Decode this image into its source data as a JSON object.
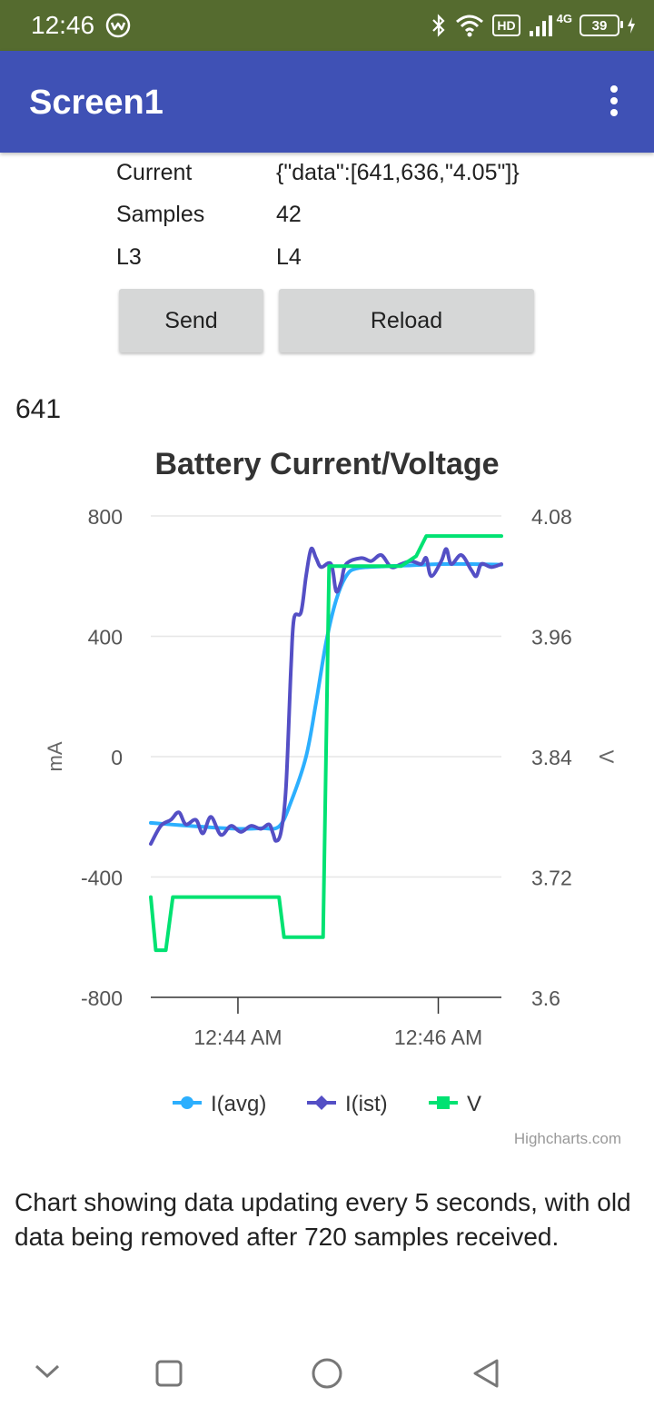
{
  "status_bar": {
    "time": "12:46",
    "network": "4G",
    "hd": "HD",
    "battery": "39"
  },
  "app_bar": {
    "title": "Screen1"
  },
  "info": {
    "rows": [
      {
        "label": "Current",
        "value": "{\"data\":[641,636,\"4.05\"]}"
      },
      {
        "label": "Samples",
        "value": "42"
      },
      {
        "label": "L3",
        "value": "L4"
      }
    ]
  },
  "buttons": {
    "send": "Send",
    "reload": "Reload"
  },
  "current_value": "641",
  "chart_data": {
    "type": "line",
    "title": "Battery Current/Voltage",
    "y_left_label": "mA",
    "y_right_label": "V",
    "y_left_ticks": [
      "800",
      "400",
      "0",
      "-400",
      "-800"
    ],
    "y_right_ticks": [
      "4.08",
      "3.96",
      "3.84",
      "3.72",
      "3.6"
    ],
    "y_left_range": [
      -800,
      800
    ],
    "y_right_range": [
      3.6,
      4.08
    ],
    "x_range_min": [
      0,
      3.5
    ],
    "x_ticks": [
      {
        "t": 0.87,
        "label": "12:44 AM"
      },
      {
        "t": 2.87,
        "label": "12:46 AM"
      }
    ],
    "grid": true,
    "legend_position": "bottom",
    "series": [
      {
        "name": "I(avg)",
        "color": "#2caffe",
        "marker": "circle",
        "axis": "left",
        "points": [
          [
            0,
            -220
          ],
          [
            0.3,
            -228
          ],
          [
            0.6,
            -235
          ],
          [
            0.9,
            -240
          ],
          [
            1.1,
            -238
          ],
          [
            1.28,
            -232
          ],
          [
            1.4,
            -150
          ],
          [
            1.55,
            0
          ],
          [
            1.65,
            180
          ],
          [
            1.75,
            380
          ],
          [
            1.85,
            520
          ],
          [
            1.95,
            600
          ],
          [
            2.05,
            625
          ],
          [
            2.3,
            632
          ],
          [
            2.6,
            636
          ],
          [
            2.9,
            640
          ],
          [
            3.2,
            640
          ],
          [
            3.5,
            638
          ]
        ]
      },
      {
        "name": "I(ist)",
        "color": "#544fc5",
        "marker": "diamond",
        "axis": "left",
        "points": [
          [
            0,
            -290
          ],
          [
            0.1,
            -230
          ],
          [
            0.2,
            -210
          ],
          [
            0.28,
            -185
          ],
          [
            0.35,
            -225
          ],
          [
            0.45,
            -210
          ],
          [
            0.52,
            -255
          ],
          [
            0.6,
            -200
          ],
          [
            0.7,
            -260
          ],
          [
            0.8,
            -230
          ],
          [
            0.9,
            -250
          ],
          [
            1.0,
            -230
          ],
          [
            1.1,
            -240
          ],
          [
            1.18,
            -225
          ],
          [
            1.22,
            -255
          ],
          [
            1.25,
            -280
          ],
          [
            1.3,
            -250
          ],
          [
            1.35,
            -100
          ],
          [
            1.4,
            300
          ],
          [
            1.43,
            460
          ],
          [
            1.5,
            480
          ],
          [
            1.55,
            600
          ],
          [
            1.6,
            690
          ],
          [
            1.65,
            660
          ],
          [
            1.7,
            630
          ],
          [
            1.8,
            640
          ],
          [
            1.85,
            550
          ],
          [
            1.9,
            580
          ],
          [
            1.95,
            640
          ],
          [
            2.1,
            660
          ],
          [
            2.2,
            650
          ],
          [
            2.3,
            670
          ],
          [
            2.4,
            630
          ],
          [
            2.5,
            640
          ],
          [
            2.6,
            650
          ],
          [
            2.7,
            640
          ],
          [
            2.75,
            660
          ],
          [
            2.8,
            600
          ],
          [
            2.9,
            650
          ],
          [
            2.95,
            690
          ],
          [
            3.0,
            640
          ],
          [
            3.1,
            670
          ],
          [
            3.2,
            620
          ],
          [
            3.25,
            600
          ],
          [
            3.3,
            640
          ],
          [
            3.4,
            630
          ],
          [
            3.5,
            640
          ]
        ]
      },
      {
        "name": "V",
        "color": "#00e272",
        "marker": "square",
        "axis": "right",
        "points": [
          [
            0,
            3.7
          ],
          [
            0.05,
            3.647
          ],
          [
            0.15,
            3.647
          ],
          [
            0.22,
            3.7
          ],
          [
            0.4,
            3.7
          ],
          [
            1.28,
            3.7
          ],
          [
            1.33,
            3.66
          ],
          [
            1.72,
            3.66
          ],
          [
            1.78,
            4.03
          ],
          [
            2.5,
            4.03
          ],
          [
            2.65,
            4.04
          ],
          [
            2.75,
            4.06
          ],
          [
            3.5,
            4.06
          ]
        ]
      }
    ]
  },
  "credits": "Highcharts.com",
  "description": "Chart showing data updating every 5 seconds, with old data being removed after 720 samples received."
}
